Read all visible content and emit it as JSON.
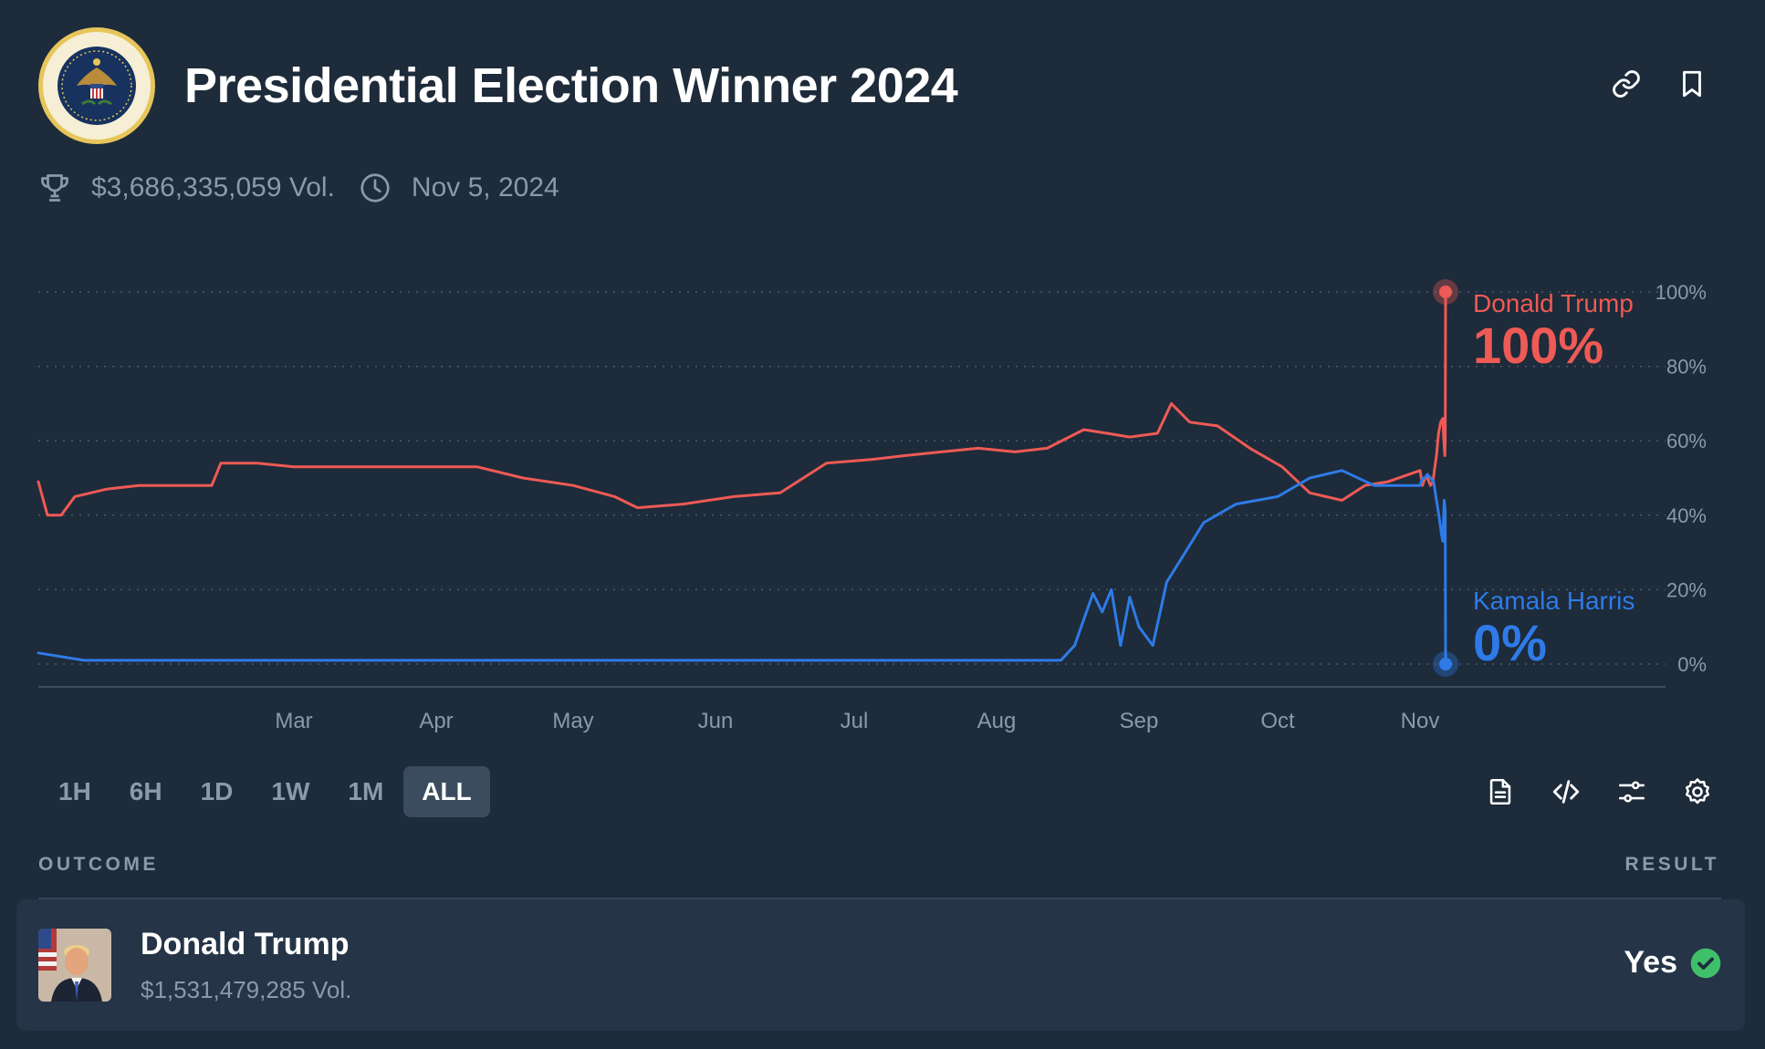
{
  "header": {
    "title": "Presidential Election Winner 2024",
    "volume": "$3,686,335,059 Vol.",
    "date": "Nov 5, 2024"
  },
  "colors": {
    "trump": "#ee5a55",
    "harris": "#2e7be8",
    "active_range_bg": "#3b4c5f",
    "success": "#3fbf6a"
  },
  "icons": [
    "seal-icon",
    "link-icon",
    "bookmark-icon",
    "trophy-icon",
    "clock-icon",
    "document-icon",
    "code-icon",
    "sliders-icon",
    "gear-icon",
    "check-circle-icon"
  ],
  "ranges": [
    "1H",
    "6H",
    "1D",
    "1W",
    "1M",
    "ALL"
  ],
  "active_range": "ALL",
  "table": {
    "outcome_header": "OUTCOME",
    "result_header": "RESULT",
    "rows": [
      {
        "name": "Donald Trump",
        "volume": "$1,531,479,285 Vol.",
        "result": "Yes"
      }
    ]
  },
  "chart_data": {
    "type": "line",
    "y_unit": "%",
    "ylim": [
      0,
      100
    ],
    "yticks": [
      "100%",
      "80%",
      "60%",
      "40%",
      "20%",
      "0%"
    ],
    "xticks": [
      "Mar",
      "Apr",
      "May",
      "Jun",
      "Jul",
      "Aug",
      "Sep",
      "Oct",
      "Nov"
    ],
    "grid": true,
    "legend_placement": "right-end labels",
    "series": [
      {
        "name": "Donald Trump",
        "final_label": "100%",
        "points": [
          [
            "2024-01-05",
            49
          ],
          [
            "2024-01-07",
            40
          ],
          [
            "2024-01-10",
            40
          ],
          [
            "2024-01-13",
            45
          ],
          [
            "2024-01-20",
            47
          ],
          [
            "2024-01-27",
            48
          ],
          [
            "2024-02-03",
            48
          ],
          [
            "2024-02-12",
            48
          ],
          [
            "2024-02-14",
            54
          ],
          [
            "2024-02-22",
            54
          ],
          [
            "2024-03-01",
            53
          ],
          [
            "2024-03-10",
            53
          ],
          [
            "2024-03-20",
            53
          ],
          [
            "2024-04-01",
            53
          ],
          [
            "2024-04-10",
            53
          ],
          [
            "2024-04-20",
            50
          ],
          [
            "2024-05-01",
            48
          ],
          [
            "2024-05-10",
            45
          ],
          [
            "2024-05-15",
            42
          ],
          [
            "2024-05-25",
            43
          ],
          [
            "2024-06-05",
            45
          ],
          [
            "2024-06-15",
            46
          ],
          [
            "2024-06-25",
            54
          ],
          [
            "2024-07-05",
            55
          ],
          [
            "2024-07-12",
            56
          ],
          [
            "2024-07-20",
            57
          ],
          [
            "2024-07-28",
            58
          ],
          [
            "2024-08-05",
            57
          ],
          [
            "2024-08-12",
            58
          ],
          [
            "2024-08-20",
            63
          ],
          [
            "2024-08-25",
            62
          ],
          [
            "2024-08-30",
            61
          ],
          [
            "2024-09-05",
            62
          ],
          [
            "2024-09-08",
            70
          ],
          [
            "2024-09-12",
            65
          ],
          [
            "2024-09-18",
            64
          ],
          [
            "2024-09-25",
            58
          ],
          [
            "2024-10-02",
            53
          ],
          [
            "2024-10-08",
            46
          ],
          [
            "2024-10-15",
            44
          ],
          [
            "2024-10-20",
            48
          ],
          [
            "2024-10-25",
            49
          ],
          [
            "2024-11-01",
            52
          ],
          [
            "2024-11-08",
            48
          ],
          [
            "2024-11-15",
            50
          ],
          [
            "2024-11-22",
            50
          ],
          [
            "2024-12-01",
            48
          ],
          [
            "2024-12-08",
            49
          ],
          [
            "2024-12-12",
            52
          ],
          [
            "2024-12-18",
            56
          ],
          [
            "2024-12-24",
            62
          ],
          [
            "2024-12-30",
            65
          ],
          [
            "2025-01-05",
            66
          ],
          [
            "2025-01-08",
            60
          ],
          [
            "2025-01-11",
            56
          ],
          [
            "2025-01-12",
            60
          ],
          [
            "2025-01-13",
            100
          ]
        ]
      },
      {
        "name": "Kamala Harris",
        "final_label": "0%",
        "points": [
          [
            "2024-01-05",
            3
          ],
          [
            "2024-01-15",
            1
          ],
          [
            "2024-02-01",
            1
          ],
          [
            "2024-03-01",
            1
          ],
          [
            "2024-04-01",
            1
          ],
          [
            "2024-05-01",
            1
          ],
          [
            "2024-06-01",
            1
          ],
          [
            "2024-07-01",
            1
          ],
          [
            "2024-08-01",
            1
          ],
          [
            "2024-08-15",
            1
          ],
          [
            "2024-08-18",
            5
          ],
          [
            "2024-08-20",
            12
          ],
          [
            "2024-08-22",
            19
          ],
          [
            "2024-08-24",
            14
          ],
          [
            "2024-08-26",
            20
          ],
          [
            "2024-08-28",
            5
          ],
          [
            "2024-08-30",
            18
          ],
          [
            "2024-09-01",
            10
          ],
          [
            "2024-09-04",
            5
          ],
          [
            "2024-09-07",
            22
          ],
          [
            "2024-09-10",
            28
          ],
          [
            "2024-09-15",
            38
          ],
          [
            "2024-09-22",
            43
          ],
          [
            "2024-10-01",
            45
          ],
          [
            "2024-10-08",
            50
          ],
          [
            "2024-10-15",
            52
          ],
          [
            "2024-10-22",
            48
          ],
          [
            "2024-11-01",
            48
          ],
          [
            "2024-11-08",
            50
          ],
          [
            "2024-11-15",
            50
          ],
          [
            "2024-11-22",
            51
          ],
          [
            "2024-12-01",
            50
          ],
          [
            "2024-12-10",
            49
          ],
          [
            "2024-12-18",
            44
          ],
          [
            "2024-12-25",
            40
          ],
          [
            "2025-01-01",
            35
          ],
          [
            "2025-01-05",
            33
          ],
          [
            "2025-01-09",
            44
          ],
          [
            "2025-01-12",
            41
          ],
          [
            "2025-01-13",
            0
          ]
        ]
      }
    ]
  }
}
